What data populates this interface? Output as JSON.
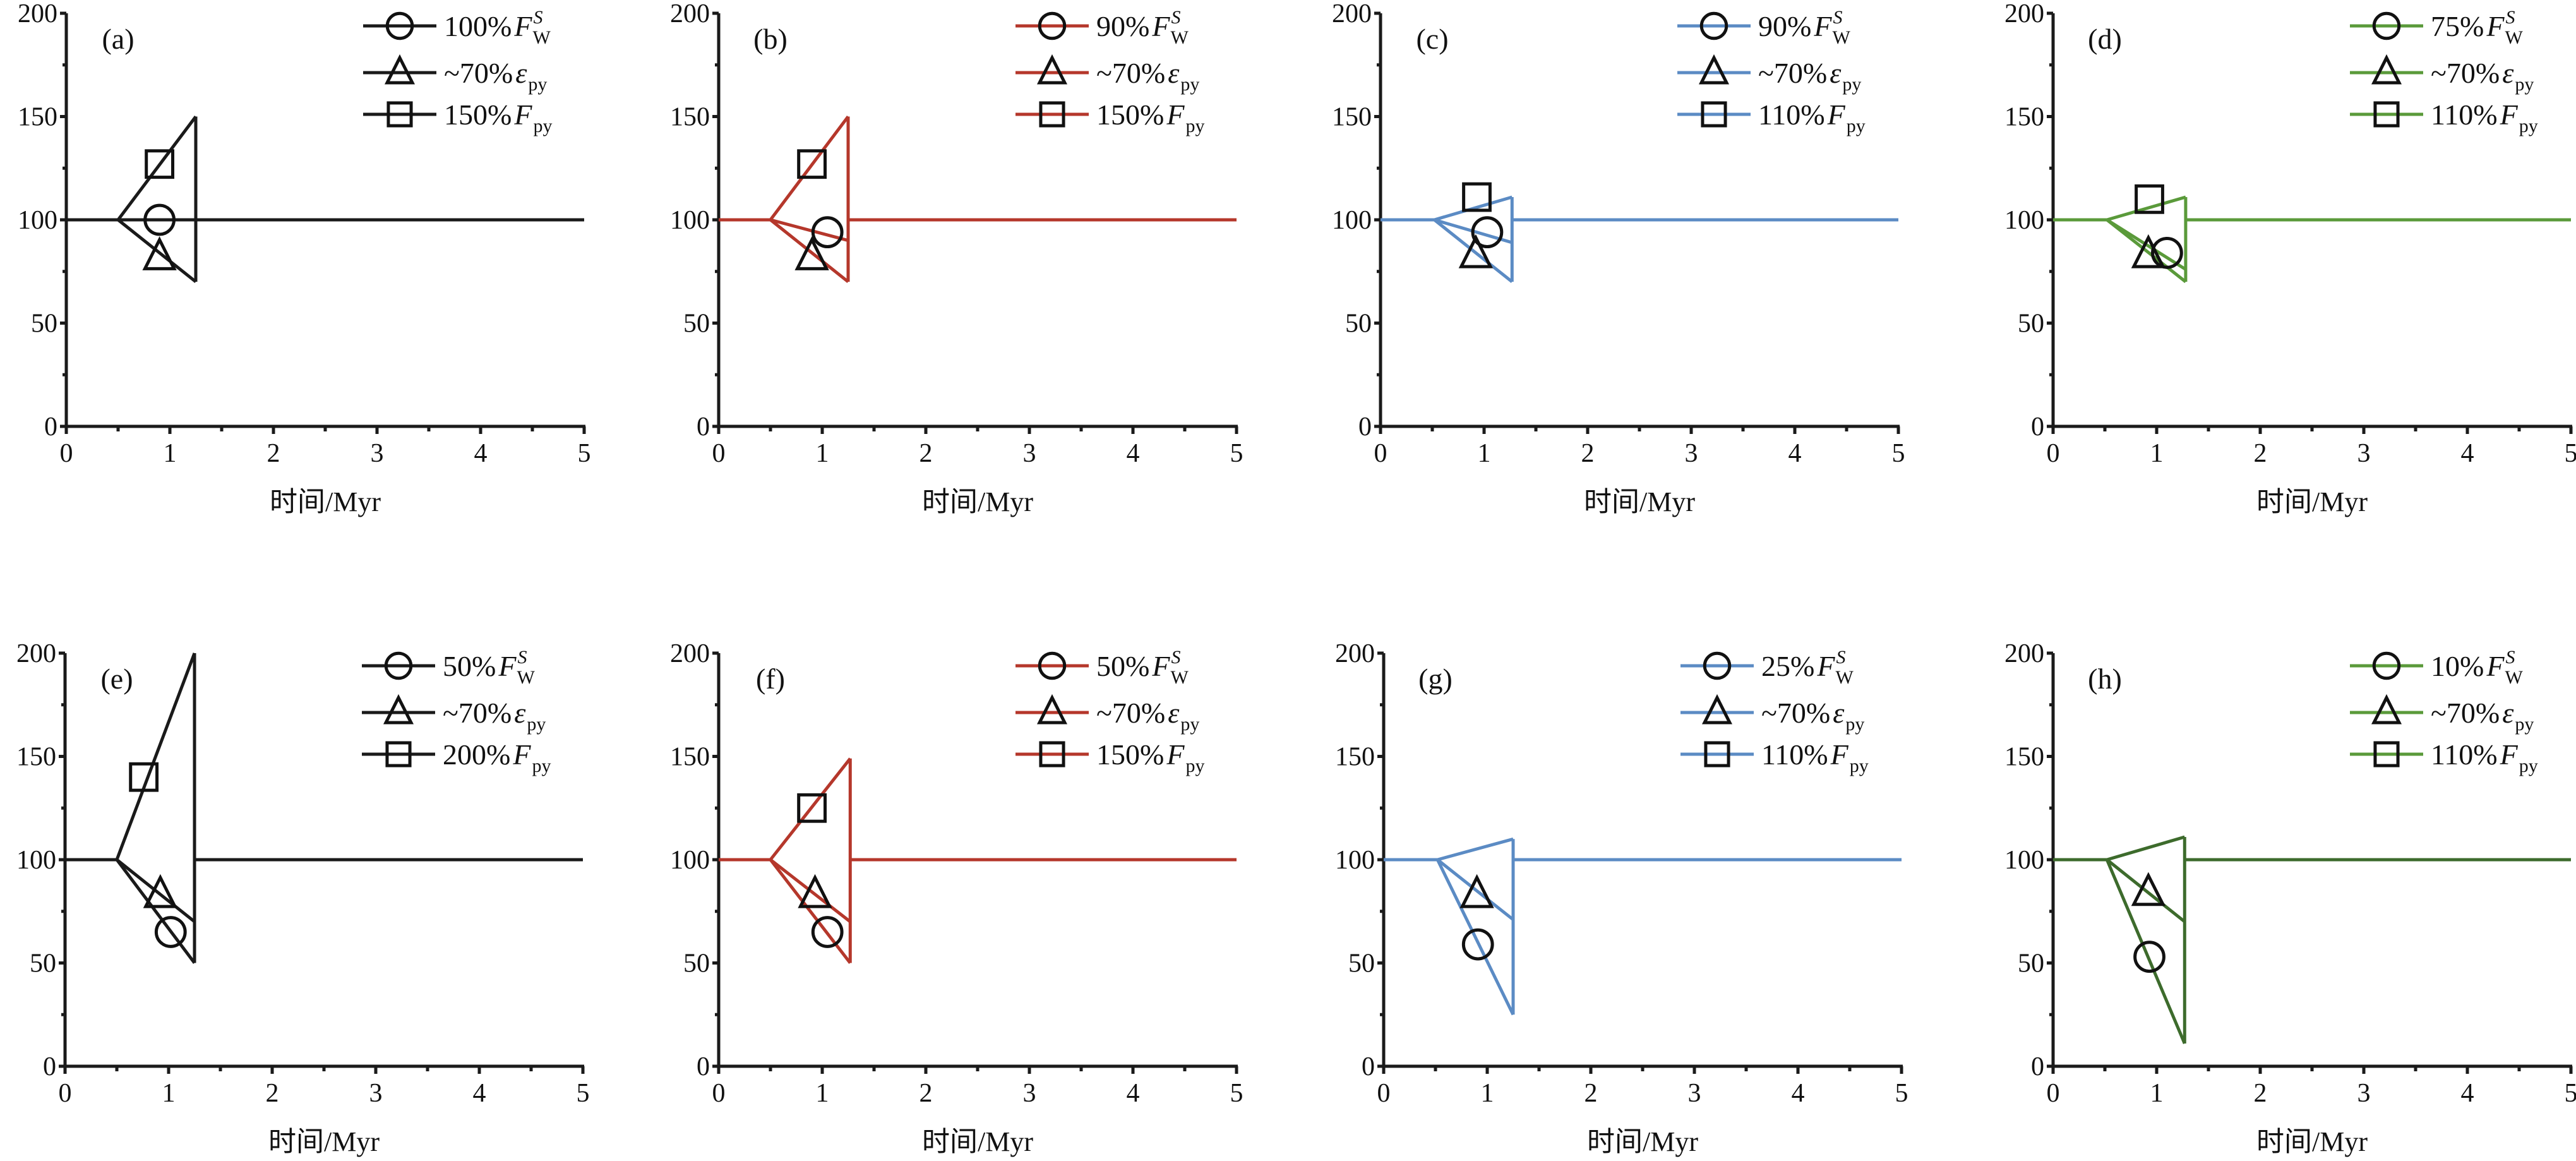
{
  "chart_data": [
    {
      "type": "line",
      "panel_label": "(a)",
      "xlabel": "时间/Myr",
      "ylabel": "",
      "xlim": [
        0,
        5
      ],
      "ylim": [
        0,
        200
      ],
      "xticks": [
        "0",
        "1",
        "2",
        "3",
        "4",
        "5"
      ],
      "yticks": [
        "0",
        "50",
        "100",
        "150",
        "200"
      ],
      "line_color": "#1a1a1a",
      "legend_color": "#1a1a1a",
      "legend": [
        {
          "marker": "circle",
          "pct": "100%",
          "sym": "F",
          "sub": "W",
          "sup": "S"
        },
        {
          "marker": "triangle",
          "pct": "~70%",
          "sym": "ε",
          "sub": "py",
          "sup": ""
        },
        {
          "marker": "square",
          "pct": "150%",
          "sym": "F",
          "sub": "py",
          "sup": ""
        }
      ],
      "baseline": 100,
      "perturbation": {
        "start": 0.5,
        "end": 1.25,
        "branches": [
          150,
          100,
          70
        ]
      },
      "markers": [
        {
          "marker": "square",
          "x": 0.9,
          "y": 127
        },
        {
          "marker": "circle",
          "x": 0.9,
          "y": 100
        },
        {
          "marker": "triangle",
          "x": 0.9,
          "y": 82
        }
      ]
    },
    {
      "type": "line",
      "panel_label": "(b)",
      "xlabel": "时间/Myr",
      "ylabel": "",
      "xlim": [
        0,
        5
      ],
      "ylim": [
        0,
        200
      ],
      "xticks": [
        "0",
        "1",
        "2",
        "3",
        "4",
        "5"
      ],
      "yticks": [
        "0",
        "50",
        "100",
        "150",
        "200"
      ],
      "line_color": "#b5372b",
      "legend_color": "#b5372b",
      "legend": [
        {
          "marker": "circle",
          "pct": "90%",
          "sym": "F",
          "sub": "W",
          "sup": "S"
        },
        {
          "marker": "triangle",
          "pct": "~70%",
          "sym": "ε",
          "sub": "py",
          "sup": ""
        },
        {
          "marker": "square",
          "pct": "150%",
          "sym": "F",
          "sub": "py",
          "sup": ""
        }
      ],
      "baseline": 100,
      "perturbation": {
        "start": 0.5,
        "end": 1.25,
        "branches": [
          150,
          90,
          70
        ]
      },
      "markers": [
        {
          "marker": "square",
          "x": 0.9,
          "y": 127
        },
        {
          "marker": "circle",
          "x": 1.05,
          "y": 94
        },
        {
          "marker": "triangle",
          "x": 0.9,
          "y": 82
        }
      ]
    },
    {
      "type": "line",
      "panel_label": "(c)",
      "xlabel": "时间/Myr",
      "ylabel": "",
      "xlim": [
        0,
        5
      ],
      "ylim": [
        0,
        200
      ],
      "xticks": [
        "0",
        "1",
        "2",
        "3",
        "4",
        "5"
      ],
      "yticks": [
        "0",
        "50",
        "100",
        "150",
        "200"
      ],
      "line_color": "#5b8bc4",
      "legend_color": "#5b8bc4",
      "legend": [
        {
          "marker": "circle",
          "pct": "90%",
          "sym": "F",
          "sub": "W",
          "sup": "S"
        },
        {
          "marker": "triangle",
          "pct": "~70%",
          "sym": "ε",
          "sub": "py",
          "sup": ""
        },
        {
          "marker": "square",
          "pct": "110%",
          "sym": "F",
          "sub": "py",
          "sup": ""
        }
      ],
      "baseline": 100,
      "perturbation": {
        "start": 0.52,
        "end": 1.27,
        "branches": [
          111,
          89,
          70
        ]
      },
      "markers": [
        {
          "marker": "square",
          "x": 0.93,
          "y": 111
        },
        {
          "marker": "circle",
          "x": 1.03,
          "y": 94
        },
        {
          "marker": "triangle",
          "x": 0.92,
          "y": 83
        }
      ]
    },
    {
      "type": "line",
      "panel_label": "(d)",
      "xlabel": "时间/Myr",
      "ylabel": "",
      "xlim": [
        0,
        5
      ],
      "ylim": [
        0,
        200
      ],
      "xticks": [
        "0",
        "1",
        "2",
        "3",
        "4",
        "5"
      ],
      "yticks": [
        "0",
        "50",
        "100",
        "150",
        "200"
      ],
      "line_color": "#5a9a3a",
      "legend_color": "#5a9a3a",
      "legend": [
        {
          "marker": "circle",
          "pct": "75%",
          "sym": "F",
          "sub": "W",
          "sup": "S"
        },
        {
          "marker": "triangle",
          "pct": "~70%",
          "sym": "ε",
          "sub": "py",
          "sup": ""
        },
        {
          "marker": "square",
          "pct": "110%",
          "sym": "F",
          "sub": "py",
          "sup": ""
        }
      ],
      "baseline": 100,
      "perturbation": {
        "start": 0.52,
        "end": 1.28,
        "branches": [
          111,
          76,
          70
        ]
      },
      "markers": [
        {
          "marker": "square",
          "x": 0.93,
          "y": 110
        },
        {
          "marker": "circle",
          "x": 1.1,
          "y": 84
        },
        {
          "marker": "triangle",
          "x": 0.92,
          "y": 83
        }
      ]
    },
    {
      "type": "line",
      "panel_label": "(e)",
      "xlabel": "时间/Myr",
      "ylabel": "",
      "xlim": [
        0,
        5
      ],
      "ylim": [
        0,
        200
      ],
      "xticks": [
        "0",
        "1",
        "2",
        "3",
        "4",
        "5"
      ],
      "yticks": [
        "0",
        "50",
        "100",
        "150",
        "200"
      ],
      "line_color": "#1a1a1a",
      "legend_color": "#1a1a1a",
      "legend": [
        {
          "marker": "circle",
          "pct": "50%",
          "sym": "F",
          "sub": "W",
          "sup": "S"
        },
        {
          "marker": "triangle",
          "pct": "~70%",
          "sym": "ε",
          "sub": "py",
          "sup": ""
        },
        {
          "marker": "square",
          "pct": "200%",
          "sym": "F",
          "sub": "py",
          "sup": ""
        }
      ],
      "baseline": 100,
      "perturbation": {
        "start": 0.5,
        "end": 1.25,
        "branches": [
          200,
          70,
          50
        ]
      },
      "markers": [
        {
          "marker": "square",
          "x": 0.76,
          "y": 140
        },
        {
          "marker": "circle",
          "x": 1.02,
          "y": 65
        },
        {
          "marker": "triangle",
          "x": 0.92,
          "y": 83
        }
      ]
    },
    {
      "type": "line",
      "panel_label": "(f)",
      "xlabel": "时间/Myr",
      "ylabel": "",
      "xlim": [
        0,
        5
      ],
      "ylim": [
        0,
        200
      ],
      "xticks": [
        "0",
        "1",
        "2",
        "3",
        "4",
        "5"
      ],
      "yticks": [
        "0",
        "50",
        "100",
        "150",
        "200"
      ],
      "line_color": "#b5372b",
      "legend_color": "#b5372b",
      "legend": [
        {
          "marker": "circle",
          "pct": "50%",
          "sym": "F",
          "sub": "W",
          "sup": "S"
        },
        {
          "marker": "triangle",
          "pct": "~70%",
          "sym": "ε",
          "sub": "py",
          "sup": ""
        },
        {
          "marker": "square",
          "pct": "150%",
          "sym": "F",
          "sub": "py",
          "sup": ""
        }
      ],
      "baseline": 100,
      "perturbation": {
        "start": 0.5,
        "end": 1.27,
        "branches": [
          149,
          70,
          50
        ]
      },
      "markers": [
        {
          "marker": "square",
          "x": 0.9,
          "y": 125
        },
        {
          "marker": "circle",
          "x": 1.05,
          "y": 65
        },
        {
          "marker": "triangle",
          "x": 0.93,
          "y": 83
        }
      ]
    },
    {
      "type": "line",
      "panel_label": "(g)",
      "xlabel": "时间/Myr",
      "ylabel": "",
      "xlim": [
        0,
        5
      ],
      "ylim": [
        0,
        200
      ],
      "xticks": [
        "0",
        "1",
        "2",
        "3",
        "4",
        "5"
      ],
      "yticks": [
        "0",
        "50",
        "100",
        "150",
        "200"
      ],
      "line_color": "#5b8bc4",
      "legend_color": "#5b8bc4",
      "legend": [
        {
          "marker": "circle",
          "pct": "25%",
          "sym": "F",
          "sub": "W",
          "sup": "S"
        },
        {
          "marker": "triangle",
          "pct": "~70%",
          "sym": "ε",
          "sub": "py",
          "sup": ""
        },
        {
          "marker": "square",
          "pct": "110%",
          "sym": "F",
          "sub": "py",
          "sup": ""
        }
      ],
      "baseline": 100,
      "perturbation": {
        "start": 0.52,
        "end": 1.25,
        "branches": [
          110,
          71,
          25
        ]
      },
      "markers": [
        {
          "marker": "circle",
          "x": 0.91,
          "y": 59
        },
        {
          "marker": "triangle",
          "x": 0.9,
          "y": 83
        }
      ]
    },
    {
      "type": "line",
      "panel_label": "(h)",
      "xlabel": "时间/Myr",
      "ylabel": "",
      "xlim": [
        0,
        5
      ],
      "ylim": [
        0,
        200
      ],
      "xticks": [
        "0",
        "1",
        "2",
        "3",
        "4",
        "5"
      ],
      "yticks": [
        "0",
        "50",
        "100",
        "150",
        "200"
      ],
      "line_color": "#3d6b2c",
      "legend_color": "#5a9a3a",
      "legend": [
        {
          "marker": "circle",
          "pct": "10%",
          "sym": "F",
          "sub": "W",
          "sup": "S"
        },
        {
          "marker": "triangle",
          "pct": "~70%",
          "sym": "ε",
          "sub": "py",
          "sup": ""
        },
        {
          "marker": "square",
          "pct": "110%",
          "sym": "F",
          "sub": "py",
          "sup": ""
        }
      ],
      "baseline": 100,
      "perturbation": {
        "start": 0.52,
        "end": 1.27,
        "branches": [
          111,
          70,
          11
        ]
      },
      "markers": [
        {
          "marker": "circle",
          "x": 0.93,
          "y": 53
        },
        {
          "marker": "triangle",
          "x": 0.92,
          "y": 84
        }
      ]
    }
  ]
}
